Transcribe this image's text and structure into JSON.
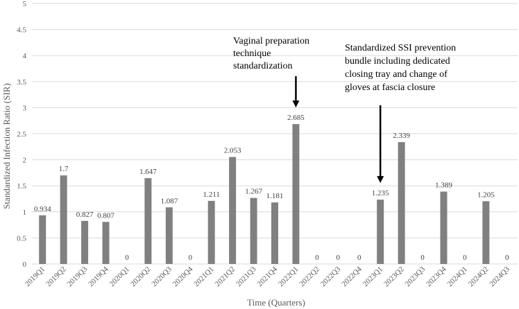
{
  "chart_data": {
    "type": "bar",
    "title": "",
    "xlabel": "Time (Quarters)",
    "ylabel": "Standardized Infection Ratio (SIR)",
    "ylim": [
      0,
      5
    ],
    "yticks": [
      "0",
      "0.5",
      "1",
      "1.5",
      "2",
      "2.5",
      "3",
      "3.5",
      "4",
      "4.5",
      "5"
    ],
    "grid": true,
    "categories": [
      "2019Q1",
      "2019Q2",
      "2019Q3",
      "2019Q4",
      "2020Q1",
      "2020Q2",
      "2020Q3",
      "2020Q4",
      "2021Q1",
      "2021Q2",
      "2021Q3",
      "2021Q4",
      "2022Q1",
      "2022Q2",
      "2022Q3",
      "2022Q4",
      "2023Q1",
      "2023Q2",
      "2023Q3",
      "2023Q4",
      "2024Q1",
      "2024Q2",
      "2024Q3"
    ],
    "values": [
      0.934,
      1.7,
      0.827,
      0.807,
      0,
      1.647,
      1.087,
      0,
      1.211,
      2.053,
      1.267,
      1.181,
      2.685,
      0,
      0,
      0,
      1.235,
      2.339,
      0,
      1.389,
      0,
      1.205,
      0
    ],
    "data_labels": [
      "0.934",
      "1.7",
      "0.827",
      "0.807",
      "0",
      "1.647",
      "1.087",
      "0",
      "1.211",
      "2.053",
      "1.267",
      "1.181",
      "2.685",
      "0",
      "0",
      "0",
      "1.235",
      "2.339",
      "0",
      "1.389",
      "0",
      "1.205",
      "0"
    ],
    "series_color": "#808080",
    "annotations": [
      {
        "lines": [
          "Vaginal preparation",
          "technique",
          "standardization"
        ],
        "points_to": "2022Q1"
      },
      {
        "lines": [
          "Standardized SSI prevention",
          "bundle including dedicated",
          "closing tray and change of",
          "gloves at fascia closure"
        ],
        "points_to": "2023Q1"
      }
    ]
  }
}
